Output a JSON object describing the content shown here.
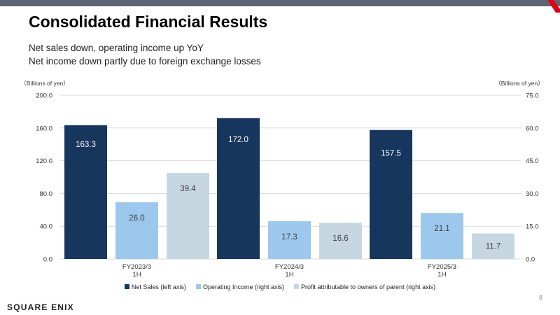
{
  "slide": {
    "title": "Consolidated Financial Results",
    "subtitle_lines": [
      "Net sales down, operating income up YoY",
      "Net income down partly due to foreign exchange losses"
    ],
    "page_number": "8",
    "logo_text": "SQUARE ENIX"
  },
  "colors": {
    "top_bar": "#5d6773",
    "accent_red": "#e5001a"
  },
  "chart_data": {
    "type": "bar",
    "categories": [
      "FY2023/3\n1H",
      "FY2024/3\n1H",
      "FY2025/3\n1H"
    ],
    "left_axis": {
      "label": "（Billions of yen）",
      "range": [
        0,
        200
      ],
      "ticks": [
        "0.0",
        "40.0",
        "80.0",
        "120.0",
        "160.0",
        "200.0"
      ]
    },
    "right_axis": {
      "label": "（Billions of yen）",
      "range": [
        0,
        75
      ],
      "ticks": [
        "0.0",
        "15.0",
        "30.0",
        "45.0",
        "60.0",
        "75.0"
      ]
    },
    "grid": true,
    "legend_position": "bottom",
    "series": [
      {
        "name": "Net Sales (left axis)",
        "axis": "left",
        "color": "#17365d",
        "label_color": "#ffffff",
        "values": [
          163.3,
          172.0,
          157.5
        ],
        "labels": [
          "163.3",
          "172.0",
          "157.5"
        ]
      },
      {
        "name": "Operating Income (right axis)",
        "axis": "right",
        "color": "#9dc8ee",
        "label_color": "#404040",
        "values": [
          26.0,
          17.3,
          21.1
        ],
        "labels": [
          "26.0",
          "17.3",
          "21.1"
        ]
      },
      {
        "name": "Profit attributable to owners of parent (right axis)",
        "axis": "right",
        "color": "#c7d7e2",
        "label_color": "#404040",
        "values": [
          39.4,
          16.6,
          11.7
        ],
        "labels": [
          "39.4",
          "16.6",
          "11.7"
        ]
      }
    ]
  }
}
